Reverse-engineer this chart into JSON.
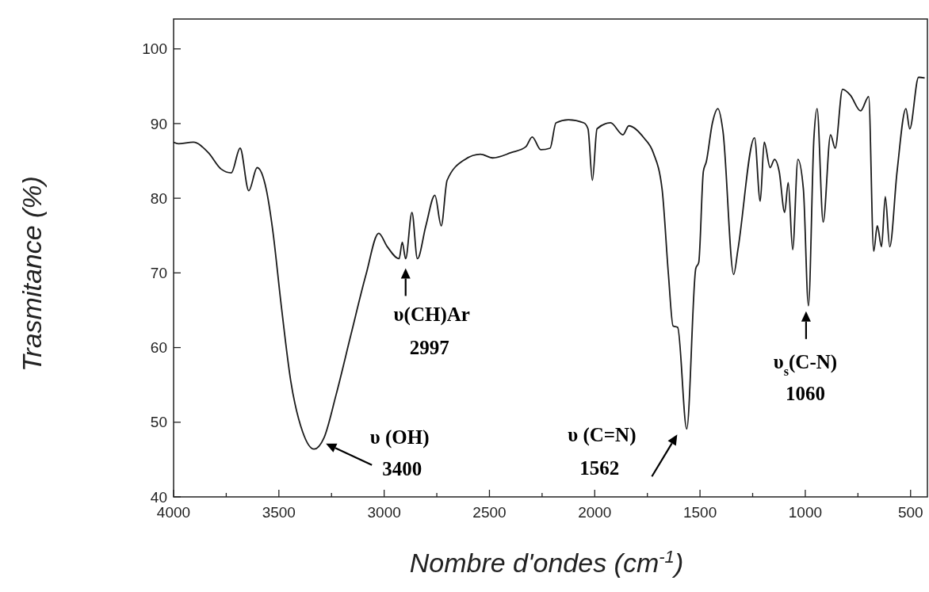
{
  "chart_data": {
    "type": "line",
    "xlabel": "Nombre d'ondes (cm$^{-1}$)",
    "ylabel": "Trasmitance (%)",
    "xlim": [
      4000,
      420
    ],
    "ylim": [
      40,
      104
    ],
    "xticks": [
      4000,
      {
        "value": 3750,
        "label": null
      },
      3500,
      {
        "value": 3250,
        "label": null
      },
      3000,
      {
        "value": 2750,
        "label": null
      },
      2500,
      {
        "value": 2250,
        "label": null
      },
      2000,
      {
        "value": 1750,
        "label": null
      },
      1500,
      {
        "value": 1250,
        "label": null
      },
      1000,
      {
        "value": 750,
        "label": null
      },
      500
    ],
    "yticks": [
      40,
      50,
      60,
      70,
      80,
      90,
      100
    ],
    "grid": false,
    "series": [
      {
        "color": "#1a1a1a",
        "x": [
          4000,
          3977,
          3906,
          3835,
          3774,
          3726,
          3684,
          3643,
          3603,
          3560,
          3530,
          3489,
          3444,
          3387,
          3333,
          3286,
          3229,
          3158,
          3086,
          3026,
          2985,
          2929,
          2914,
          2898,
          2868,
          2842,
          2802,
          2759,
          2729,
          2701,
          2616,
          2543,
          2485,
          2398,
          2327,
          2297,
          2256,
          2212,
          2184,
          2125,
          2052,
          2032,
          2011,
          1989,
          1925,
          1866,
          1838,
          1767,
          1722,
          1680,
          1650,
          1628,
          1606,
          1563,
          1520,
          1506,
          1484,
          1470,
          1441,
          1415,
          1391,
          1340,
          1320,
          1241,
          1214,
          1195,
          1167,
          1146,
          1124,
          1098,
          1081,
          1060,
          1035,
          1009,
          985,
          959,
          944,
          915,
          880,
          858,
          823,
          786,
          737,
          699,
          675,
          658,
          638,
          620,
          599,
          564,
          522,
          504,
          462,
          433
        ],
        "values": [
          87.5,
          87.3,
          87.5,
          86.1,
          83.9,
          83.4,
          86.7,
          81.0,
          84.1,
          81.2,
          75.9,
          65.7,
          55.6,
          48.7,
          46.4,
          47.9,
          53.6,
          61.7,
          69.8,
          75.3,
          73.5,
          71.9,
          74.1,
          71.9,
          78.1,
          71.9,
          76.3,
          80.4,
          76.3,
          82.4,
          85.2,
          85.9,
          85.4,
          86.1,
          86.9,
          88.2,
          86.5,
          86.7,
          90.1,
          90.5,
          90.1,
          89.3,
          82.4,
          89.3,
          90.1,
          88.5,
          89.7,
          88.1,
          86.1,
          81.2,
          69.8,
          62.9,
          62.7,
          49.1,
          70.6,
          71.4,
          83.6,
          84.9,
          90.1,
          92.0,
          89.0,
          69.8,
          73.1,
          88.1,
          79.6,
          87.5,
          84.1,
          85.2,
          83.6,
          78.1,
          82.1,
          73.1,
          85.2,
          81.2,
          65.6,
          88.1,
          92.0,
          76.8,
          88.5,
          86.7,
          94.6,
          93.8,
          91.7,
          93.6,
          72.9,
          76.3,
          73.5,
          80.2,
          73.5,
          83.6,
          92.0,
          89.3,
          96.2,
          96.1
        ]
      }
    ],
    "annotations": [
      {
        "text": "υ (OH)\n3400",
        "x": 3333,
        "y": 46.4
      },
      {
        "text": "υ(CH)Ar\n2997",
        "x": 2898,
        "y": 71.9
      },
      {
        "text": "υ (C=N)\n1562",
        "x": 1563,
        "y": 49.1
      },
      {
        "text": "υ$_{s}$(C-N)\n1060",
        "x": 985,
        "y": 65.6
      }
    ]
  }
}
